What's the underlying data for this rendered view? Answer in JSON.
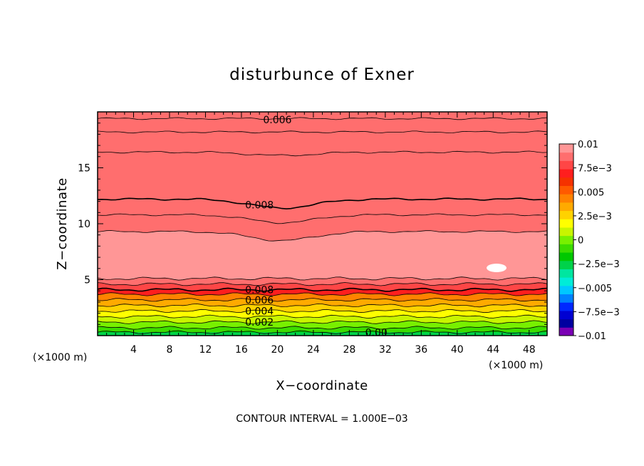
{
  "chart_data": {
    "type": "contour",
    "title": "disturbunce of Exner",
    "xlabel": "X−coordinate",
    "ylabel": "Z−coordinate",
    "x_unit": "(×1000 m)",
    "y_unit": "(×1000 m)",
    "xlim": [
      0,
      50
    ],
    "ylim": [
      0,
      20
    ],
    "x_ticks": [
      4,
      8,
      12,
      16,
      20,
      24,
      28,
      32,
      36,
      40,
      44,
      48
    ],
    "y_ticks": [
      5,
      10,
      15
    ],
    "x_tick_labels": [
      "4",
      "8",
      "12",
      "16",
      "20",
      "24",
      "28",
      "32",
      "36",
      "40",
      "44",
      "48"
    ],
    "y_tick_labels": [
      "5",
      "10",
      "15"
    ],
    "contour_interval_text": "CONTOUR INTERVAL = 1.000E−03",
    "contour_interval": 0.001,
    "contour_labels": [
      {
        "text": "0.006",
        "x": 20,
        "z": 19.3
      },
      {
        "text": "0.008",
        "x": 18,
        "z": 11.7
      },
      {
        "text": "0.008",
        "x": 18,
        "z": 4.1
      },
      {
        "text": "0.006",
        "x": 18,
        "z": 3.2
      },
      {
        "text": "0.004",
        "x": 18,
        "z": 2.2
      },
      {
        "text": "0.002",
        "x": 18,
        "z": 1.2
      },
      {
        "text": "0.00",
        "x": 31,
        "z": 0.3
      }
    ],
    "colorbar": {
      "min": -0.01,
      "max": 0.01,
      "tick_labels": [
        "0.01",
        "7.5e−3",
        "0.005",
        "2.5e−3",
        "0",
        "−2.5e−3",
        "−0.005",
        "−7.5e−3",
        "−0.01"
      ],
      "colors": [
        "#7a00b4",
        "#0000a0",
        "#0000d2",
        "#0028ff",
        "#0082ff",
        "#00c8ff",
        "#00ecd8",
        "#00e6a0",
        "#00d24a",
        "#00c800",
        "#3cdc00",
        "#78f000",
        "#c8f500",
        "#ffff00",
        "#ffd200",
        "#ffaa00",
        "#ff8200",
        "#ff5a00",
        "#f53200",
        "#ff1e1e",
        "#ff4646",
        "#ff6e6e",
        "#ff9696"
      ]
    },
    "data_description": "Perturbation Exner field, nearly horizontally stratified: values rise from 0 at the surface through 0.002, 0.004, 0.006 near z=1-3.5 km, to about 0.008 at z=4 km, peak above 0.009 (lightest red) between z=5 and 8.5 km, and decrease back through 0.008 near z=12 km to about 0.006 at the top z=20 km.",
    "approx_contour_heights_km": {
      "0.000": 0.3,
      "0.001": 0.7,
      "0.002": 1.2,
      "0.003": 1.7,
      "0.004": 2.2,
      "0.005": 2.7,
      "0.006": 3.2,
      "0.007": 3.7,
      "0.008_lower": 4.1,
      "0.009_lower": 5.1,
      "0.009_upper": 9.3,
      "0.008_upper": 12.2,
      "0.007_upper": 16.4,
      "0.006_upper": 19.4
    },
    "legend_position": "right",
    "grid": false
  }
}
